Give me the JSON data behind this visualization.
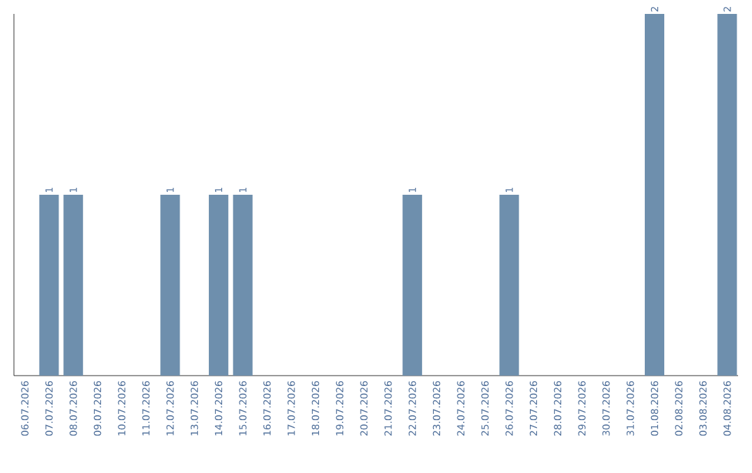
{
  "chart_data": {
    "type": "bar",
    "color": "#6e8fad",
    "categories": [
      "06.07.2026",
      "07.07.2026",
      "08.07.2026",
      "09.07.2026",
      "10.07.2026",
      "11.07.2026",
      "12.07.2026",
      "13.07.2026",
      "14.07.2026",
      "15.07.2026",
      "16.07.2026",
      "17.07.2026",
      "18.07.2026",
      "19.07.2026",
      "20.07.2026",
      "21.07.2026",
      "22.07.2026",
      "23.07.2026",
      "24.07.2026",
      "25.07.2026",
      "26.07.2026",
      "27.07.2026",
      "28.07.2026",
      "29.07.2026",
      "30.07.2026",
      "31.07.2026",
      "01.08.2026",
      "02.08.2026",
      "03.08.2026",
      "04.08.2026"
    ],
    "values": [
      0,
      1,
      1,
      0,
      0,
      0,
      1,
      0,
      1,
      1,
      0,
      0,
      0,
      0,
      0,
      0,
      1,
      0,
      0,
      0,
      1,
      0,
      0,
      0,
      0,
      0,
      2,
      0,
      0,
      2
    ],
    "value_labels": [
      null,
      "1",
      "1",
      null,
      null,
      null,
      "1",
      null,
      "1",
      "1",
      null,
      null,
      null,
      null,
      null,
      null,
      "1",
      null,
      null,
      null,
      "1",
      null,
      null,
      null,
      null,
      null,
      "2",
      null,
      null,
      "2"
    ],
    "grid": false
  }
}
